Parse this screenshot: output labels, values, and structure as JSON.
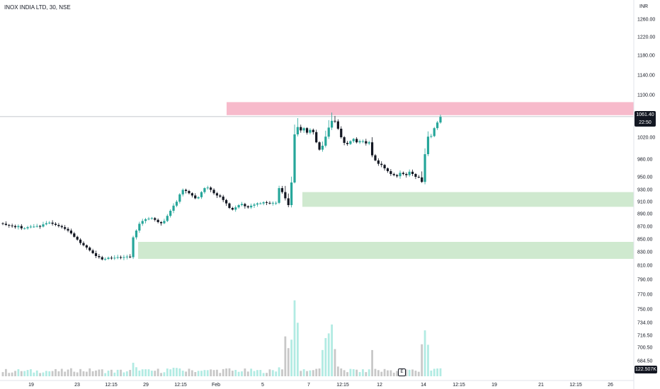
{
  "header": {
    "symbol": "INOX INDIA LTD, 30, NSE",
    "currency": "INR"
  },
  "last_price": {
    "value": "1061.40",
    "countdown": "22:50"
  },
  "volume_readout": "122.507K",
  "earnings_badge": "E",
  "colors": {
    "up": "#26a69a",
    "down": "#131722",
    "resistance_zone": "#f7bacb",
    "support_zone": "#cfe9cf",
    "volume_up": "#b2ebe3",
    "volume_down": "#c8c8c8"
  },
  "chart_data": {
    "type": "candlestick",
    "y_tick_labels": [
      "1260.00",
      "1220.00",
      "1180.00",
      "1140.00",
      "1100.00",
      "1020.00",
      "980.00",
      "950.00",
      "930.00",
      "910.00",
      "890.00",
      "870.00",
      "850.00",
      "830.00",
      "810.00",
      "790.00",
      "770.00",
      "750.00",
      "734.00",
      "716.50",
      "700.50",
      "684.50"
    ],
    "x_tick_labels": [
      "19",
      "23",
      "12:15",
      "29",
      "12:15",
      "Feb",
      "5",
      "7",
      "12:15",
      "12",
      "14",
      "12:15",
      "19",
      "21",
      "12:15",
      "26"
    ],
    "price_line": 1061.4,
    "zones": [
      {
        "type": "resistance",
        "top": 1087,
        "bottom": 1064
      },
      {
        "type": "support",
        "top": 928,
        "bottom": 902
      },
      {
        "type": "support",
        "top": 840,
        "bottom": 810
      }
    ],
    "closes": [
      872,
      870,
      869,
      868,
      866,
      868,
      864,
      864,
      866,
      867,
      867,
      868,
      867,
      871,
      873,
      874,
      872,
      870,
      868,
      866,
      863,
      860,
      855,
      849,
      844,
      838,
      834,
      830,
      825,
      820,
      815,
      813,
      809,
      810,
      812,
      811,
      812,
      813,
      812,
      813,
      814,
      813,
      848,
      860,
      872,
      877,
      880,
      881,
      882,
      879,
      875,
      873,
      877,
      886,
      895,
      904,
      911,
      924,
      932,
      930,
      926,
      922,
      917,
      919,
      928,
      935,
      936,
      932,
      926,
      922,
      920,
      914,
      908,
      900,
      897,
      901,
      905,
      907,
      903,
      901,
      904,
      906,
      908,
      908,
      910,
      909,
      908,
      909,
      909,
      935,
      928,
      917,
      905,
      945,
      1030,
      1043,
      1037,
      1041,
      1033,
      1038,
      1034,
      1016,
      1003,
      1010,
      1026,
      1042,
      1054,
      1053,
      1040,
      1025,
      1015,
      1013,
      1018,
      1022,
      1016,
      1018,
      1018,
      1014,
      1016,
      993,
      984,
      978,
      976,
      970,
      965,
      960,
      958,
      956,
      962,
      960,
      958,
      964,
      960,
      955,
      954,
      946,
      995,
      1026,
      1027,
      1041,
      1051,
      1061
    ]
  }
}
